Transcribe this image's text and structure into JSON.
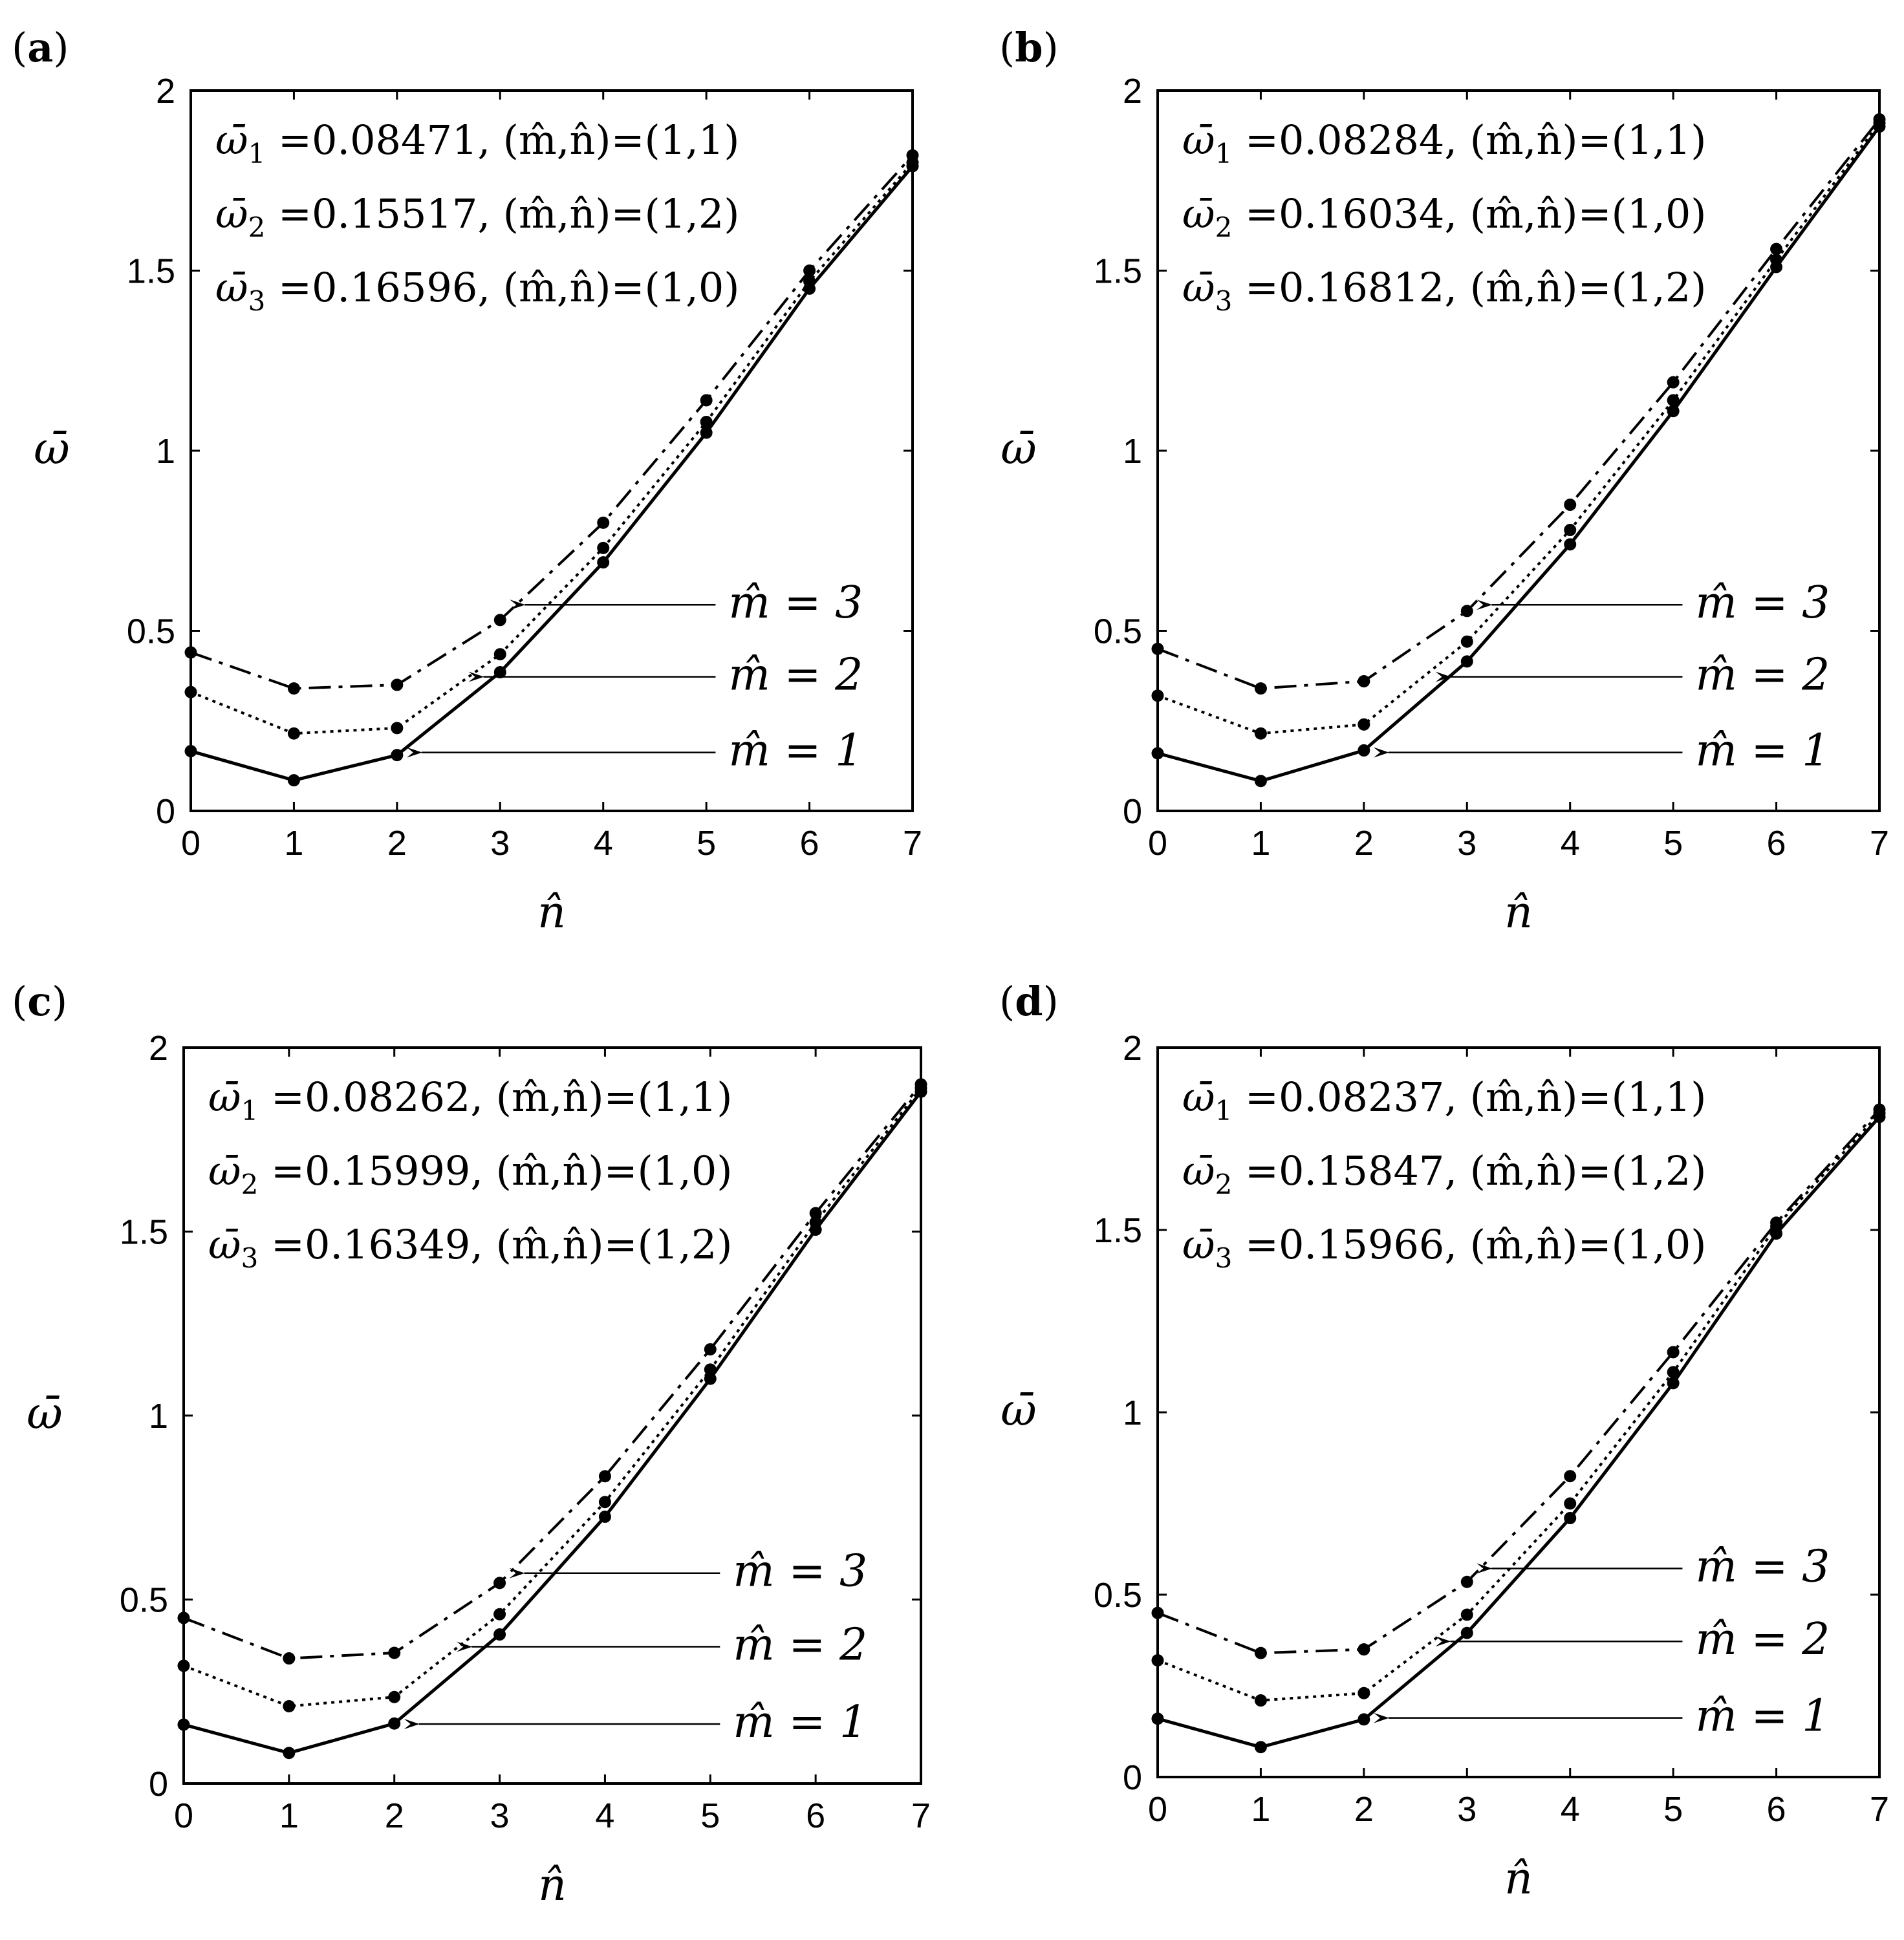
{
  "figure": {
    "x_label": "n̂",
    "y_label": "ω̄",
    "series_names": [
      "m̂ = 1",
      "m̂ = 2",
      "m̂ = 3"
    ],
    "colors": {
      "line": "#000000",
      "background": "#ffffff"
    }
  },
  "chart_data": [
    {
      "panel": "(a)",
      "type": "line",
      "x": [
        0,
        1,
        2,
        3,
        4,
        5,
        6,
        7
      ],
      "xlabel": "n̂",
      "ylabel": "ω̄",
      "xlim": [
        0,
        7
      ],
      "ylim": [
        0,
        2
      ],
      "xticks": [
        "0",
        "1",
        "2",
        "3",
        "4",
        "5",
        "6",
        "7"
      ],
      "yticks": [
        "0",
        "0.5",
        "1",
        "1.5",
        "2"
      ],
      "annotations": [
        {
          "label": "ω̄",
          "sub": "1",
          "text": " =0.08471, (m̂,n̂)=(1,1)"
        },
        {
          "label": "ω̄",
          "sub": "2",
          "text": " =0.15517, (m̂,n̂)=(1,2)"
        },
        {
          "label": "ω̄",
          "sub": "3",
          "text": " =0.16596, (m̂,n̂)=(1,0)"
        }
      ],
      "series": [
        {
          "name": "m̂ = 1",
          "style": "solid",
          "label": "m̂ = 1",
          "arrow_to_x": 2,
          "values": [
            0.166,
            0.085,
            0.155,
            0.385,
            0.69,
            1.05,
            1.45,
            1.79
          ]
        },
        {
          "name": "m̂ = 2",
          "style": "dotted",
          "label": "m̂ = 2",
          "arrow_to_x": 2.6,
          "values": [
            0.33,
            0.215,
            0.23,
            0.435,
            0.73,
            1.08,
            1.47,
            1.8
          ]
        },
        {
          "name": "m̂ = 3",
          "style": "dashdot",
          "label": "m̂ = 3",
          "arrow_to_x": 3,
          "values": [
            0.44,
            0.34,
            0.35,
            0.53,
            0.8,
            1.14,
            1.5,
            1.82
          ]
        }
      ]
    },
    {
      "panel": "(b)",
      "type": "line",
      "x": [
        0,
        1,
        2,
        3,
        4,
        5,
        6,
        7
      ],
      "xlabel": "n̂",
      "ylabel": "ω̄",
      "xlim": [
        0,
        7
      ],
      "ylim": [
        0,
        2
      ],
      "xticks": [
        "0",
        "1",
        "2",
        "3",
        "4",
        "5",
        "6",
        "7"
      ],
      "yticks": [
        "0",
        "0.5",
        "1",
        "1.5",
        "2"
      ],
      "annotations": [
        {
          "label": "ω̄",
          "sub": "1",
          "text": " =0.08284, (m̂,n̂)=(1,1)"
        },
        {
          "label": "ω̄",
          "sub": "2",
          "text": " =0.16034, (m̂,n̂)=(1,0)"
        },
        {
          "label": "ω̄",
          "sub": "3",
          "text": " =0.16812, (m̂,n̂)=(1,2)"
        }
      ],
      "series": [
        {
          "name": "m̂ = 1",
          "style": "solid",
          "label": "m̂ = 1",
          "arrow_to_x": 2,
          "values": [
            0.16,
            0.083,
            0.168,
            0.415,
            0.74,
            1.11,
            1.51,
            1.9
          ]
        },
        {
          "name": "m̂ = 2",
          "style": "dotted",
          "label": "m̂ = 2",
          "arrow_to_x": 2.6,
          "values": [
            0.32,
            0.215,
            0.24,
            0.47,
            0.78,
            1.14,
            1.53,
            1.91
          ]
        },
        {
          "name": "m̂ = 3",
          "style": "dashdot",
          "label": "m̂ = 3",
          "arrow_to_x": 3,
          "values": [
            0.45,
            0.34,
            0.36,
            0.555,
            0.85,
            1.19,
            1.56,
            1.92
          ]
        }
      ]
    },
    {
      "panel": "(c)",
      "type": "line",
      "x": [
        0,
        1,
        2,
        3,
        4,
        5,
        6,
        7
      ],
      "xlabel": "n̂",
      "ylabel": "ω̄",
      "xlim": [
        0,
        7
      ],
      "ylim": [
        0,
        2
      ],
      "xticks": [
        "0",
        "1",
        "2",
        "3",
        "4",
        "5",
        "6",
        "7"
      ],
      "yticks": [
        "0",
        "0.5",
        "1",
        "1.5",
        "2"
      ],
      "annotations": [
        {
          "label": "ω̄",
          "sub": "1",
          "text": " =0.08262, (m̂,n̂)=(1,1)"
        },
        {
          "label": "ω̄",
          "sub": "2",
          "text": " =0.15999, (m̂,n̂)=(1,0)"
        },
        {
          "label": "ω̄",
          "sub": "3",
          "text": " =0.16349, (m̂,n̂)=(1,2)"
        }
      ],
      "series": [
        {
          "name": "m̂ = 1",
          "style": "solid",
          "label": "m̂ = 1",
          "arrow_to_x": 2,
          "values": [
            0.16,
            0.083,
            0.163,
            0.405,
            0.725,
            1.1,
            1.505,
            1.88
          ]
        },
        {
          "name": "m̂ = 2",
          "style": "dotted",
          "label": "m̂ = 2",
          "arrow_to_x": 2.5,
          "values": [
            0.32,
            0.21,
            0.235,
            0.46,
            0.765,
            1.125,
            1.525,
            1.89
          ]
        },
        {
          "name": "m̂ = 3",
          "style": "dashdot",
          "label": "m̂ = 3",
          "arrow_to_x": 3,
          "values": [
            0.45,
            0.34,
            0.355,
            0.545,
            0.835,
            1.18,
            1.55,
            1.9
          ]
        }
      ]
    },
    {
      "panel": "(d)",
      "type": "line",
      "x": [
        0,
        1,
        2,
        3,
        4,
        5,
        6,
        7
      ],
      "xlabel": "n̂",
      "ylabel": "ω̄",
      "xlim": [
        0,
        7
      ],
      "ylim": [
        0,
        2
      ],
      "xticks": [
        "0",
        "1",
        "2",
        "3",
        "4",
        "5",
        "6",
        "7"
      ],
      "yticks": [
        "0",
        "0.5",
        "1",
        "1.5",
        "2"
      ],
      "annotations": [
        {
          "label": "ω̄",
          "sub": "1",
          "text": " =0.08237, (m̂,n̂)=(1,1)"
        },
        {
          "label": "ω̄",
          "sub": "2",
          "text": " =0.15847, (m̂,n̂)=(1,2)"
        },
        {
          "label": "ω̄",
          "sub": "3",
          "text": " =0.15966, (m̂,n̂)=(1,0)"
        }
      ],
      "series": [
        {
          "name": "m̂ = 1",
          "style": "solid",
          "label": "m̂ = 1",
          "arrow_to_x": 2,
          "values": [
            0.16,
            0.082,
            0.158,
            0.395,
            0.71,
            1.08,
            1.49,
            1.81
          ]
        },
        {
          "name": "m̂ = 2",
          "style": "dotted",
          "label": "m̂ = 2",
          "arrow_to_x": 2.6,
          "values": [
            0.32,
            0.21,
            0.23,
            0.445,
            0.75,
            1.11,
            1.51,
            1.82
          ]
        },
        {
          "name": "m̂ = 3",
          "style": "dashdot",
          "label": "m̂ = 3",
          "arrow_to_x": 3,
          "values": [
            0.45,
            0.34,
            0.35,
            0.535,
            0.825,
            1.165,
            1.52,
            1.83
          ]
        }
      ]
    }
  ]
}
